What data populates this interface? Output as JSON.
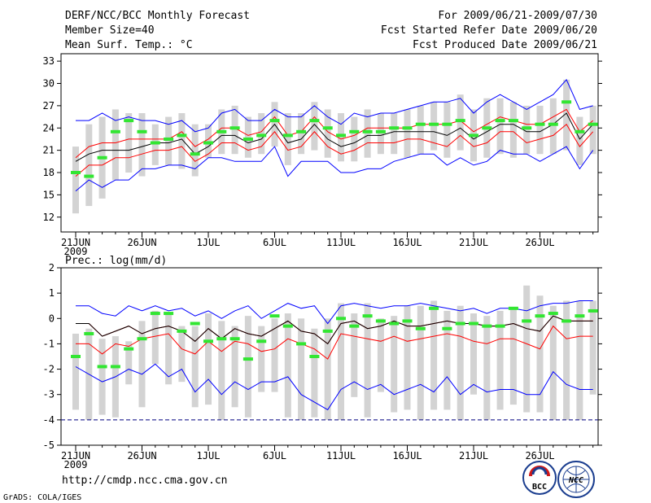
{
  "header": {
    "title": "DERF/NCC/BCC Monthly Forecast",
    "member_size": "Member Size=40",
    "variable": "Mean Surf. Temp.: °C",
    "period": "For 2009/06/21-2009/07/30",
    "refer_date": "Fcst Started Refer Date 2009/06/20",
    "produced_date": "Fcst Produced Date 2009/06/21"
  },
  "footer": {
    "url": "http://cmdp.ncc.cma.gov.cn",
    "grads_credit": "GrADS: COLA/IGES",
    "logo_bcc_text": "BCC",
    "logo_ncc_text": "NCC"
  },
  "colors": {
    "box": "#d3d3d3",
    "mean": "#000000",
    "band": "#ff0000",
    "extreme": "#0000ff",
    "marker": "#32e632",
    "dash": "#000080"
  },
  "chart_data": [
    {
      "id": "temperature",
      "type": "box-and-line",
      "title": "Mean Surf. Temp.: °C",
      "ylim": [
        10,
        34
      ],
      "yticks": [
        12,
        15,
        18,
        21,
        24,
        27,
        30,
        33
      ],
      "xticks": [
        {
          "day": 0,
          "label": "21JUN"
        },
        {
          "day": 5,
          "label": "26JUN"
        },
        {
          "day": 10,
          "label": "1JUL"
        },
        {
          "day": 15,
          "label": "6JUL"
        },
        {
          "day": 20,
          "label": "11JUL"
        },
        {
          "day": 25,
          "label": "16JUL"
        },
        {
          "day": 30,
          "label": "21JUL"
        },
        {
          "day": 35,
          "label": "26JUL"
        }
      ],
      "year_label": "2009",
      "days": [
        0,
        1,
        2,
        3,
        4,
        5,
        6,
        7,
        8,
        9,
        10,
        11,
        12,
        13,
        14,
        15,
        16,
        17,
        18,
        19,
        20,
        21,
        22,
        23,
        24,
        25,
        26,
        27,
        28,
        29,
        30,
        31,
        32,
        33,
        34,
        35,
        36,
        37,
        38,
        39
      ],
      "box_low": [
        12.5,
        13.5,
        14.5,
        17.0,
        18.0,
        17.5,
        19.0,
        19.0,
        18.5,
        17.5,
        20.0,
        20.5,
        20.5,
        20.0,
        20.5,
        21.5,
        19.0,
        20.5,
        21.0,
        20.0,
        19.5,
        19.5,
        20.0,
        20.5,
        20.5,
        20.0,
        20.5,
        21.0,
        20.0,
        21.0,
        19.5,
        20.0,
        20.5,
        20.0,
        20.5,
        20.5,
        20.5,
        21.0,
        19.0,
        20.5
      ],
      "box_high": [
        21.5,
        24.5,
        25.5,
        26.5,
        26.0,
        26.0,
        24.5,
        25.5,
        26.0,
        24.5,
        24.5,
        26.5,
        27.0,
        25.5,
        26.0,
        27.5,
        26.0,
        26.0,
        27.5,
        26.5,
        26.0,
        25.5,
        26.5,
        26.0,
        26.0,
        26.5,
        27.0,
        27.5,
        27.5,
        28.5,
        26.5,
        28.0,
        28.0,
        27.5,
        27.0,
        27.0,
        28.0,
        30.5,
        25.5,
        27.0
      ],
      "min": [
        15.5,
        17.0,
        16.0,
        17.0,
        17.0,
        18.5,
        18.5,
        19.0,
        19.0,
        18.5,
        20.0,
        20.0,
        19.5,
        19.5,
        19.5,
        21.5,
        17.5,
        19.5,
        19.5,
        19.5,
        18.0,
        18.0,
        18.5,
        18.5,
        19.5,
        20.0,
        20.5,
        20.5,
        19.0,
        20.0,
        19.0,
        19.5,
        21.0,
        20.5,
        20.5,
        19.5,
        20.5,
        21.5,
        18.5,
        21.0
      ],
      "lo_band": [
        17.5,
        19.0,
        19.0,
        20.0,
        20.0,
        20.5,
        21.0,
        21.0,
        21.5,
        19.5,
        20.5,
        22.0,
        22.0,
        21.0,
        21.5,
        23.5,
        21.0,
        21.5,
        23.5,
        21.5,
        20.5,
        21.0,
        22.0,
        22.0,
        22.0,
        22.5,
        22.5,
        22.0,
        21.5,
        23.0,
        21.5,
        22.0,
        23.5,
        23.5,
        22.0,
        22.5,
        23.0,
        24.5,
        21.5,
        23.5
      ],
      "mean": [
        19.5,
        20.5,
        21.0,
        21.0,
        21.0,
        21.5,
        22.0,
        22.0,
        22.5,
        20.5,
        21.5,
        23.0,
        23.0,
        22.0,
        22.5,
        24.5,
        22.0,
        22.5,
        24.5,
        22.5,
        21.5,
        22.0,
        23.0,
        23.0,
        23.5,
        23.5,
        23.5,
        23.5,
        23.0,
        24.0,
        22.5,
        23.5,
        24.5,
        24.5,
        23.5,
        23.5,
        24.5,
        26.0,
        22.5,
        24.5
      ],
      "hi_band": [
        20.0,
        21.5,
        22.0,
        22.0,
        22.5,
        22.5,
        22.5,
        22.5,
        23.5,
        21.5,
        22.5,
        24.0,
        24.0,
        23.0,
        23.5,
        25.5,
        23.0,
        23.5,
        25.5,
        23.5,
        22.5,
        23.0,
        24.0,
        24.0,
        24.0,
        24.0,
        24.5,
        24.5,
        24.5,
        25.0,
        23.5,
        24.5,
        25.5,
        25.0,
        24.5,
        24.5,
        25.5,
        26.5,
        23.5,
        25.0
      ],
      "max": [
        25.0,
        25.0,
        26.0,
        25.0,
        25.5,
        25.0,
        25.0,
        24.5,
        25.0,
        23.5,
        24.0,
        26.0,
        26.5,
        25.0,
        25.0,
        26.5,
        25.5,
        25.5,
        27.0,
        25.5,
        24.5,
        26.0,
        25.5,
        26.0,
        26.0,
        26.5,
        27.0,
        27.5,
        27.5,
        28.0,
        26.0,
        27.5,
        28.5,
        27.5,
        26.5,
        27.5,
        28.5,
        30.5,
        26.5,
        27.0
      ],
      "marker": [
        18.0,
        17.5,
        20.0,
        23.5,
        25.0,
        23.5,
        22.0,
        22.5,
        23.0,
        20.5,
        22.0,
        23.5,
        24.0,
        22.5,
        23.0,
        25.0,
        23.0,
        23.5,
        25.0,
        24.0,
        23.0,
        23.5,
        23.5,
        23.5,
        24.0,
        24.0,
        24.5,
        24.5,
        24.5,
        25.0,
        23.0,
        24.0,
        25.0,
        25.0,
        24.0,
        24.5,
        24.5,
        27.5,
        23.5,
        24.5
      ]
    },
    {
      "id": "precipitation",
      "type": "box-and-line",
      "title": "Prec.: log(mm/d)",
      "ylim": [
        -5,
        2
      ],
      "yticks": [
        -5,
        -4,
        -3,
        -2,
        -1,
        0,
        1,
        2
      ],
      "xticks": [
        {
          "day": 0,
          "label": "21JUN"
        },
        {
          "day": 5,
          "label": "26JUN"
        },
        {
          "day": 10,
          "label": "1JUL"
        },
        {
          "day": 15,
          "label": "6JUL"
        },
        {
          "day": 20,
          "label": "11JUL"
        },
        {
          "day": 25,
          "label": "16JUL"
        },
        {
          "day": 30,
          "label": "21JUL"
        },
        {
          "day": 35,
          "label": "26JUL"
        }
      ],
      "year_label": "2009",
      "dashed_line": -4,
      "days": [
        0,
        1,
        2,
        3,
        4,
        5,
        6,
        7,
        8,
        9,
        10,
        11,
        12,
        13,
        14,
        15,
        16,
        17,
        18,
        19,
        20,
        21,
        22,
        23,
        24,
        25,
        26,
        27,
        28,
        29,
        30,
        31,
        32,
        33,
        34,
        35,
        36,
        37,
        38,
        39
      ],
      "box_low": [
        -3.6,
        -4.0,
        -3.8,
        -3.9,
        -2.6,
        -3.5,
        -1.8,
        -2.6,
        -2.5,
        -3.5,
        -3.4,
        -4.0,
        -3.5,
        -3.9,
        -2.9,
        -2.9,
        -3.9,
        -4.0,
        -3.9,
        -4.0,
        -4.0,
        -3.1,
        -3.9,
        -2.9,
        -3.7,
        -3.6,
        -4.0,
        -3.6,
        -3.6,
        -4.0,
        -3.0,
        -4.0,
        -3.6,
        -3.4,
        -3.7,
        -3.7,
        -4.0,
        -4.0,
        -4.0,
        -3.0
      ],
      "box_high": [
        -0.6,
        -0.4,
        -0.8,
        -0.7,
        -0.9,
        -0.1,
        0.3,
        0.2,
        -0.3,
        -0.3,
        0.2,
        -0.1,
        -0.3,
        0.1,
        -0.3,
        0.0,
        0.2,
        0.0,
        -0.4,
        0.0,
        0.6,
        0.2,
        0.6,
        0.0,
        0.1,
        0.5,
        0.5,
        0.7,
        0.3,
        0.5,
        0.2,
        0.1,
        0.3,
        0.4,
        1.3,
        0.9,
        0.5,
        0.7,
        0.7,
        0.7
      ],
      "min": [
        -1.9,
        -2.2,
        -2.5,
        -2.3,
        -2.0,
        -2.2,
        -1.8,
        -2.3,
        -2.0,
        -2.9,
        -2.4,
        -3.0,
        -2.5,
        -2.8,
        -2.5,
        -2.5,
        -2.3,
        -3.0,
        -3.3,
        -3.6,
        -2.8,
        -2.5,
        -2.8,
        -2.6,
        -3.0,
        -2.8,
        -2.6,
        -2.9,
        -2.3,
        -3.0,
        -2.6,
        -2.9,
        -2.8,
        -2.8,
        -3.0,
        -3.0,
        -2.1,
        -2.6,
        -2.8,
        -2.8
      ],
      "lo_band": [
        -1.0,
        -1.0,
        -1.4,
        -1.0,
        -1.1,
        -0.8,
        -0.7,
        -0.6,
        -1.2,
        -1.4,
        -0.9,
        -1.3,
        -0.9,
        -1.0,
        -1.3,
        -1.2,
        -0.8,
        -1.0,
        -1.2,
        -1.6,
        -0.6,
        -0.7,
        -0.8,
        -0.9,
        -0.7,
        -0.9,
        -0.8,
        -0.7,
        -0.6,
        -0.7,
        -0.9,
        -1.0,
        -0.8,
        -0.8,
        -1.0,
        -1.2,
        -0.3,
        -0.8,
        -0.7,
        -0.7
      ],
      "mean": [
        -0.2,
        -0.2,
        -0.7,
        -0.5,
        -0.3,
        -0.6,
        -0.4,
        -0.3,
        -0.5,
        -0.9,
        -0.4,
        -0.8,
        -0.4,
        -0.6,
        -0.7,
        -0.4,
        -0.1,
        -0.5,
        -0.6,
        -1.0,
        -0.2,
        -0.1,
        -0.4,
        -0.3,
        -0.1,
        -0.3,
        -0.3,
        -0.2,
        -0.1,
        -0.2,
        -0.2,
        -0.3,
        -0.3,
        -0.2,
        -0.4,
        -0.5,
        0.1,
        -0.1,
        -0.1,
        -0.1
      ],
      "hi_band": [
        -0.2,
        -0.2,
        -0.7,
        -0.5,
        -0.3,
        -0.6,
        -0.4,
        -0.3,
        -0.5,
        -0.9,
        -0.4,
        -0.8,
        -0.4,
        -0.6,
        -0.7,
        -0.4,
        -0.1,
        -0.5,
        -0.6,
        -1.0,
        -0.2,
        -0.1,
        -0.4,
        -0.3,
        -0.1,
        -0.3,
        -0.3,
        -0.2,
        -0.1,
        -0.2,
        -0.2,
        -0.3,
        -0.3,
        -0.2,
        -0.4,
        -0.5,
        0.1,
        -0.1,
        -0.1,
        -0.1
      ],
      "max": [
        0.5,
        0.5,
        0.2,
        0.1,
        0.5,
        0.3,
        0.5,
        0.3,
        0.4,
        0.1,
        0.3,
        0.0,
        0.3,
        0.5,
        0.0,
        0.3,
        0.6,
        0.4,
        0.5,
        -0.2,
        0.5,
        0.6,
        0.5,
        0.4,
        0.5,
        0.5,
        0.6,
        0.5,
        0.4,
        0.3,
        0.4,
        0.2,
        0.4,
        0.4,
        0.3,
        0.5,
        0.6,
        0.6,
        0.7,
        0.7
      ],
      "marker": [
        -1.5,
        -0.6,
        -1.9,
        -1.9,
        -1.2,
        -0.8,
        0.2,
        0.2,
        -0.5,
        -0.2,
        -0.9,
        -0.8,
        -0.8,
        -1.6,
        -0.9,
        0.1,
        -0.3,
        -1.0,
        -1.5,
        -0.5,
        0.0,
        -0.3,
        0.1,
        -0.1,
        -0.2,
        -0.1,
        -0.4,
        0.4,
        -0.4,
        -0.2,
        -0.2,
        -0.3,
        -0.3,
        0.4,
        -0.1,
        0.1,
        0.2,
        -0.1,
        0.1,
        0.3
      ]
    }
  ]
}
